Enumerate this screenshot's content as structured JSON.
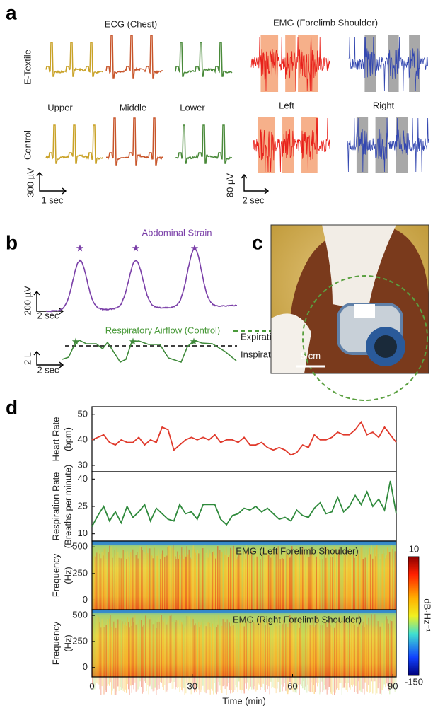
{
  "panels": {
    "a": {
      "label": "a",
      "ecg_title": "ECG (Chest)",
      "emg_title": "EMG (Forelimb Shoulder)",
      "rows": [
        "E-Textile",
        "Control"
      ],
      "ecg_columns": [
        "Upper",
        "Middle",
        "Lower"
      ],
      "emg_columns": [
        "Left",
        "Right"
      ],
      "ecg_scale": {
        "y": "300 µV",
        "x": "1 sec"
      },
      "emg_scale": {
        "y": "80 µV",
        "x": "2 sec"
      }
    },
    "b": {
      "label": "b",
      "strain_label": "Abdominal Strain",
      "airflow_label": "Respiratory Airflow (Control)",
      "expiration": "Expiration",
      "inspiration": "Inspiration",
      "strain_scale": {
        "y": "200 µV",
        "x": "2 sec"
      },
      "airflow_scale": {
        "y": "2 L",
        "x": "2 sec"
      }
    },
    "c": {
      "label": "c",
      "scale": "5 cm"
    },
    "d": {
      "label": "d"
    }
  },
  "chart_data": [
    {
      "type": "line",
      "y_label": [
        "Heart Rate",
        "(bpm)"
      ],
      "x": [
        0,
        1.75,
        3.5,
        5.25,
        7,
        8.75,
        10.5,
        12.25,
        14,
        15.75,
        17.5,
        19.25,
        21,
        22.75,
        24.5,
        26.25,
        28,
        29.75,
        31.5,
        33.25,
        35,
        36.75,
        38.5,
        40.25,
        42,
        43.75,
        45.5,
        47.25,
        49,
        50.75,
        52.5,
        54.25,
        56,
        57.75,
        59.5,
        61.25,
        63,
        64.75,
        66.5,
        68.25,
        70,
        71.75,
        73.5,
        75.25,
        77,
        78.75,
        80.5,
        82.25,
        84,
        85.75,
        87.5,
        89.25,
        91
      ],
      "series": [
        {
          "color": "#e0392b",
          "values": [
            40,
            41,
            42,
            39,
            38,
            40,
            39,
            39,
            41,
            38,
            40,
            39,
            45,
            44,
            36,
            38,
            40,
            41,
            40,
            41,
            40,
            42,
            39,
            40,
            40,
            39,
            41,
            38,
            38,
            39,
            37,
            36,
            37,
            36,
            34,
            35,
            38,
            37,
            42,
            40,
            40,
            41,
            43,
            42,
            42,
            44,
            47,
            42,
            43,
            41,
            45,
            42,
            39
          ]
        }
      ],
      "xlim": [
        0,
        91
      ],
      "ylim": [
        27.5,
        53
      ],
      "yticks": [
        30,
        40,
        50
      ]
    },
    {
      "type": "line",
      "y_label": [
        "Respiration Rate",
        "(Breaths per minute)"
      ],
      "x": [
        0,
        1.75,
        3.5,
        5.25,
        7,
        8.75,
        10.5,
        12.25,
        14,
        15.75,
        17.5,
        19.25,
        21,
        22.75,
        24.5,
        26.25,
        28,
        29.75,
        31.5,
        33.25,
        35,
        36.75,
        38.5,
        40.25,
        42,
        43.75,
        45.5,
        47.25,
        49,
        50.75,
        52.5,
        54.25,
        56,
        57.75,
        59.5,
        61.25,
        63,
        64.75,
        66.5,
        68.25,
        70,
        71.75,
        73.5,
        75.25,
        77,
        78.75,
        80.5,
        82.25,
        84,
        85.75,
        87.5,
        89.25,
        91
      ],
      "series": [
        {
          "color": "#2f8a3c",
          "values": [
            14,
            20,
            25,
            17,
            22,
            16,
            25,
            19,
            22,
            26,
            17,
            24,
            21,
            18,
            17,
            26,
            21,
            22,
            18,
            26,
            26,
            26,
            18,
            15,
            20,
            21,
            24,
            23,
            25,
            22,
            24,
            21,
            18,
            19,
            17,
            23,
            20,
            19,
            24,
            27,
            21,
            22,
            30,
            22,
            25,
            31,
            26,
            33,
            25,
            29,
            23,
            39,
            21
          ]
        }
      ],
      "xlim": [
        0,
        91
      ],
      "ylim": [
        6,
        44
      ],
      "yticks": [
        10,
        25,
        40
      ]
    },
    {
      "type": "spectrogram",
      "title": "EMG (Left Forelimb Shoulder)",
      "y_label": [
        "Frequency",
        "(Hz)"
      ],
      "xlim": [
        0,
        91
      ],
      "ylim": [
        -90,
        555
      ],
      "yticks": [
        0,
        250,
        500
      ]
    },
    {
      "type": "spectrogram",
      "title": "EMG (Right Forelimb Shoulder)",
      "y_label": [
        "Frequency",
        "(Hz)"
      ],
      "xlim": [
        0,
        91
      ],
      "ylim": [
        -90,
        555
      ],
      "yticks": [
        0,
        250,
        500
      ],
      "xticks": [
        0,
        30,
        60,
        90
      ],
      "x_label": "Time (min)",
      "colorbar": {
        "lim": [
          -150,
          10
        ],
        "ticks": [
          -150,
          10
        ],
        "label": "dB·Hz⁻¹"
      }
    }
  ]
}
